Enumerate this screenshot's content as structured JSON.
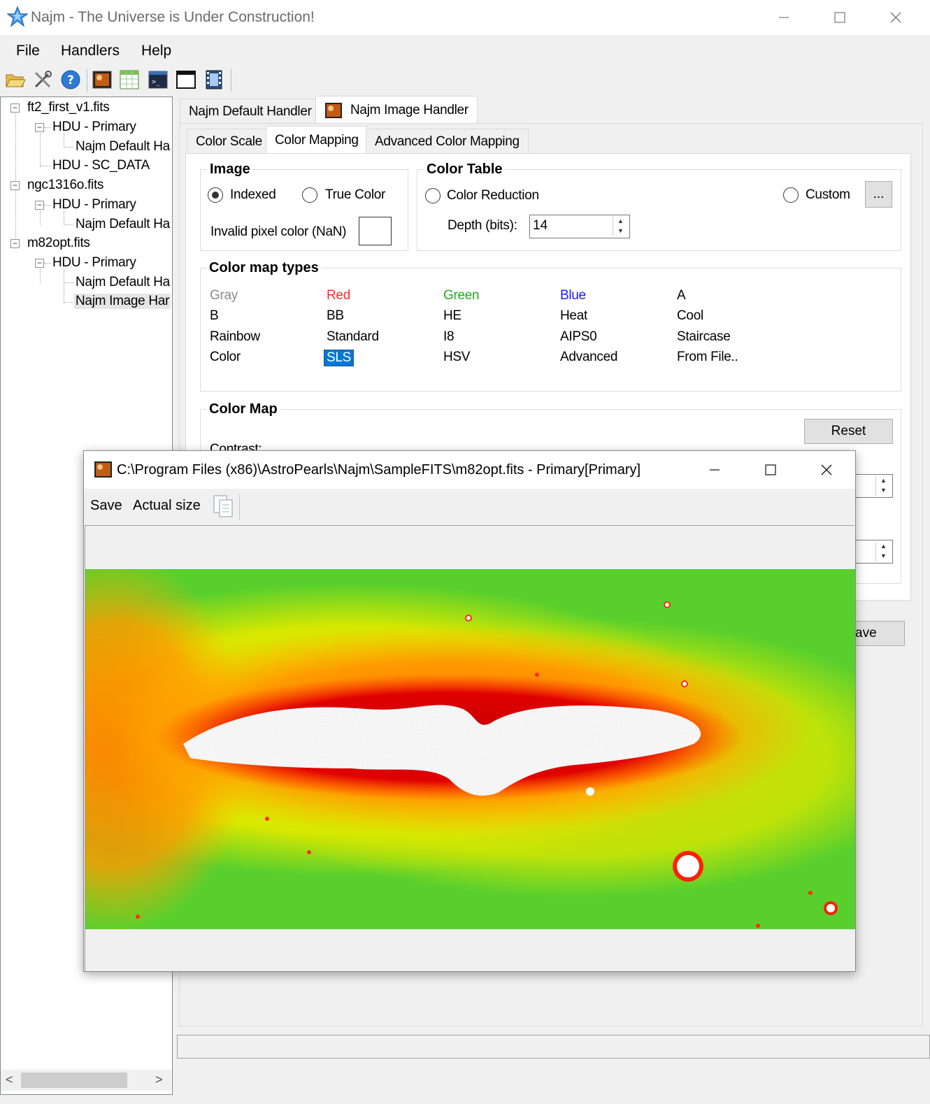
{
  "window": {
    "title": "Najm - The Universe is Under Construction!"
  },
  "menu": [
    "File",
    "Handlers",
    "Help"
  ],
  "toolbar_icons": [
    "open-folder-icon",
    "tools-icon",
    "help-icon",
    "image-icon",
    "table-icon",
    "terminal-icon",
    "window-icon",
    "film-icon"
  ],
  "tree": {
    "items": [
      {
        "label": "ft2_first_v1.fits",
        "level": 0,
        "expander": "−"
      },
      {
        "label": "HDU - Primary",
        "level": 1,
        "expander": "−"
      },
      {
        "label": "Najm Default Ha",
        "level": 2
      },
      {
        "label": "HDU - SC_DATA",
        "level": 1
      },
      {
        "label": "ngc1316o.fits",
        "level": 0,
        "expander": "−"
      },
      {
        "label": "HDU - Primary",
        "level": 1,
        "expander": "−"
      },
      {
        "label": "Najm Default Ha",
        "level": 2
      },
      {
        "label": "m82opt.fits",
        "level": 0,
        "expander": "−"
      },
      {
        "label": "HDU - Primary",
        "level": 1,
        "expander": "−"
      },
      {
        "label": "Najm Default Ha",
        "level": 2
      },
      {
        "label": "Najm Image Har",
        "level": 2,
        "selected": true
      }
    ]
  },
  "handler_tabs": [
    "Najm Default Handler",
    "Najm Image Handler"
  ],
  "sub_tabs": [
    "Color Scale",
    "Color Mapping",
    "Advanced Color Mapping"
  ],
  "image_group": {
    "title": "Image",
    "indexed_label": "Indexed",
    "true_color_label": "True Color",
    "nan_label": "Invalid pixel color (NaN)"
  },
  "color_table": {
    "title": "Color Table",
    "reduction_label": "Color Reduction",
    "custom_label": "Custom",
    "browse_label": "...",
    "depth_label": "Depth (bits):",
    "depth_value": "14"
  },
  "color_map_types": {
    "title": "Color map types",
    "items": [
      {
        "label": "Gray",
        "color": "#8a8a8a"
      },
      {
        "label": "Red",
        "color": "#ff2a2a"
      },
      {
        "label": "Green",
        "color": "#1fae1f"
      },
      {
        "label": "Blue",
        "color": "#1a1aff"
      },
      {
        "label": "A",
        "color": "#000000"
      },
      {
        "label": "B",
        "color": "#000000"
      },
      {
        "label": "BB",
        "color": "#000000"
      },
      {
        "label": "HE",
        "color": "#000000"
      },
      {
        "label": "Heat",
        "color": "#000000"
      },
      {
        "label": "Cool",
        "color": "#000000"
      },
      {
        "label": "Rainbow",
        "color": "#000000"
      },
      {
        "label": "Standard",
        "color": "#000000"
      },
      {
        "label": "I8",
        "color": "#000000"
      },
      {
        "label": "AIPS0",
        "color": "#000000"
      },
      {
        "label": "Staircase",
        "color": "#000000"
      },
      {
        "label": "Color",
        "color": "#000000"
      },
      {
        "label": "SLS",
        "color": "#ffffff",
        "selected": true
      },
      {
        "label": "HSV",
        "color": "#000000"
      },
      {
        "label": "Advanced",
        "color": "#000000"
      },
      {
        "label": "From File..",
        "color": "#000000"
      }
    ]
  },
  "color_map": {
    "title": "Color Map",
    "reset_label": "Reset",
    "contrast_label": "Contrast:",
    "save_partial": "ave"
  },
  "image_window": {
    "title": "C:\\Program Files (x86)\\AstroPearls\\Najm\\SampleFITS\\m82opt.fits - Primary[Primary]",
    "save_label": "Save",
    "actual_size_label": "Actual size"
  },
  "colors": {
    "selection": "#0078d7",
    "accent_star": "#1e78d2"
  }
}
